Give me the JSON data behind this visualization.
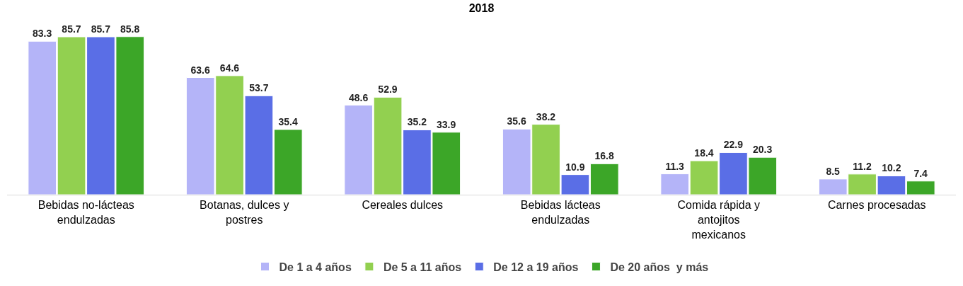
{
  "chart_data": {
    "type": "bar",
    "title": "2018",
    "categories": [
      "Bebidas no-lácteas endulzadas",
      "Botanas, dulces y postres",
      "Cereales dulces",
      "Bebidas lácteas endulzadas",
      "Comida rápida y antojitos mexicanos",
      "Carnes procesadas"
    ],
    "series": [
      {
        "name": "De 1 a 4 años",
        "color": "#b4b4f8",
        "values": [
          83.3,
          63.6,
          48.6,
          35.6,
          11.3,
          8.5
        ]
      },
      {
        "name": "De 5 a 11 años",
        "color": "#92d050",
        "values": [
          85.7,
          64.6,
          52.9,
          38.2,
          18.4,
          11.2
        ]
      },
      {
        "name": "De 12 a 19 años",
        "color": "#5a6ee6",
        "values": [
          85.7,
          53.7,
          35.2,
          10.9,
          22.9,
          10.2
        ]
      },
      {
        "name": "De 20 años  y más",
        "color": "#3ca628",
        "values": [
          85.8,
          35.4,
          33.9,
          16.8,
          20.3,
          7.4
        ]
      }
    ],
    "data_labels": true,
    "legend": "bottom"
  }
}
